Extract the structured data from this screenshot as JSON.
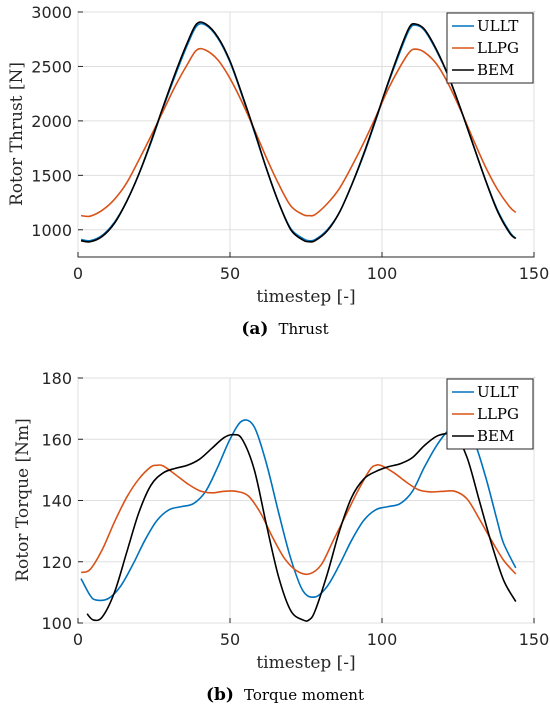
{
  "chart_data": [
    {
      "type": "line",
      "caption_letter": "(a)",
      "caption_text": "Thrust",
      "xlabel": "timestep [-]",
      "ylabel": "Rotor Thrust [N]",
      "xlim": [
        0,
        150
      ],
      "ylim": [
        750,
        3000
      ],
      "xticks": [
        0,
        50,
        100,
        150
      ],
      "yticks": [
        1000,
        1500,
        2000,
        2500,
        3000
      ],
      "grid": true,
      "legend_position": "top-right",
      "series": [
        {
          "name": "ULLT",
          "color": "#0072BD",
          "x": [
            1,
            4,
            8,
            12,
            16,
            20,
            24,
            28,
            32,
            36,
            39,
            42,
            46,
            50,
            54,
            58,
            62,
            66,
            70,
            74,
            76,
            78,
            82,
            86,
            90,
            94,
            98,
            102,
            106,
            109,
            111,
            114,
            118,
            122,
            126,
            130,
            134,
            138,
            142,
            144
          ],
          "y": [
            910,
            900,
            950,
            1070,
            1260,
            1510,
            1800,
            2120,
            2420,
            2700,
            2870,
            2880,
            2760,
            2540,
            2230,
            1900,
            1560,
            1250,
            1010,
            920,
            900,
            910,
            1000,
            1160,
            1410,
            1690,
            2010,
            2340,
            2640,
            2840,
            2880,
            2830,
            2640,
            2400,
            2100,
            1780,
            1460,
            1180,
            980,
            920
          ]
        },
        {
          "name": "LLPG",
          "color": "#D95319",
          "x": [
            1,
            4,
            8,
            12,
            16,
            20,
            24,
            28,
            32,
            36,
            39,
            42,
            46,
            50,
            54,
            58,
            62,
            66,
            70,
            74,
            76,
            78,
            82,
            86,
            90,
            94,
            98,
            102,
            106,
            109,
            111,
            114,
            118,
            122,
            126,
            130,
            134,
            138,
            142,
            144
          ],
          "y": [
            1130,
            1125,
            1180,
            1280,
            1430,
            1640,
            1860,
            2090,
            2320,
            2520,
            2650,
            2650,
            2560,
            2390,
            2170,
            1920,
            1660,
            1420,
            1220,
            1140,
            1130,
            1140,
            1240,
            1380,
            1580,
            1800,
            2040,
            2290,
            2500,
            2630,
            2660,
            2630,
            2520,
            2330,
            2090,
            1830,
            1580,
            1370,
            1210,
            1160
          ]
        },
        {
          "name": "BEM",
          "color": "#000000",
          "x": [
            1,
            4,
            8,
            12,
            16,
            20,
            24,
            28,
            32,
            36,
            39,
            42,
            46,
            50,
            54,
            58,
            62,
            66,
            70,
            74,
            76,
            78,
            82,
            86,
            90,
            94,
            98,
            102,
            106,
            109,
            111,
            114,
            118,
            122,
            126,
            130,
            134,
            138,
            142,
            144
          ],
          "y": [
            900,
            890,
            940,
            1060,
            1260,
            1510,
            1810,
            2130,
            2440,
            2720,
            2890,
            2890,
            2770,
            2550,
            2240,
            1910,
            1560,
            1250,
            1000,
            905,
            890,
            900,
            990,
            1160,
            1410,
            1700,
            2020,
            2350,
            2660,
            2860,
            2890,
            2840,
            2650,
            2400,
            2100,
            1780,
            1460,
            1170,
            970,
            920
          ]
        }
      ]
    },
    {
      "type": "line",
      "caption_letter": "(b)",
      "caption_text": "Torque moment",
      "xlabel": "timestep [-]",
      "ylabel": "Rotor Torque [Nm]",
      "xlim": [
        0,
        150
      ],
      "ylim": [
        100,
        180
      ],
      "xticks": [
        0,
        50,
        100,
        150
      ],
      "yticks": [
        100,
        120,
        140,
        160,
        180
      ],
      "grid": true,
      "legend_position": "top-right",
      "series": [
        {
          "name": "ULLT",
          "color": "#0072BD",
          "x": [
            1,
            4,
            6,
            10,
            14,
            18,
            22,
            26,
            30,
            34,
            38,
            42,
            46,
            50,
            54,
            58,
            62,
            66,
            70,
            74,
            78,
            82,
            86,
            90,
            94,
            98,
            102,
            106,
            110,
            114,
            118,
            122,
            126,
            130,
            134,
            138,
            140,
            144
          ],
          "y": [
            114.5,
            109,
            107.5,
            108,
            112,
            119,
            127,
            133.5,
            137,
            138,
            139,
            143,
            151,
            160,
            166,
            164,
            152,
            136,
            121,
            110.5,
            108.5,
            112,
            119,
            127,
            133.5,
            137,
            138,
            139,
            143,
            151,
            158,
            163,
            164,
            160,
            148,
            133,
            126,
            118
          ]
        },
        {
          "name": "LLPG",
          "color": "#D95319",
          "x": [
            1,
            4,
            8,
            12,
            16,
            20,
            24,
            26,
            28,
            32,
            36,
            40,
            44,
            48,
            52,
            56,
            60,
            64,
            68,
            72,
            76,
            80,
            84,
            88,
            92,
            96,
            98,
            100,
            104,
            108,
            112,
            116,
            120,
            124,
            128,
            132,
            136,
            140,
            144
          ],
          "y": [
            116.5,
            117.5,
            124,
            133,
            141,
            147,
            151,
            151.5,
            151.3,
            148.5,
            145.5,
            143.2,
            142.5,
            143,
            143,
            141.5,
            136,
            128,
            121,
            117,
            116,
            119,
            127,
            135,
            143,
            150,
            151.5,
            151.3,
            149,
            146,
            143.5,
            142.8,
            143,
            143,
            140.5,
            134,
            127,
            120.5,
            116
          ]
        },
        {
          "name": "BEM",
          "color": "#000000",
          "x": [
            3,
            5,
            8,
            12,
            16,
            20,
            24,
            28,
            32,
            36,
            40,
            44,
            48,
            51,
            54,
            58,
            62,
            66,
            70,
            74,
            76,
            78,
            82,
            86,
            90,
            94,
            98,
            102,
            106,
            110,
            114,
            118,
            122,
            124,
            128,
            132,
            136,
            140,
            144
          ],
          "y": [
            103,
            101,
            102,
            110,
            123,
            136,
            145,
            149,
            150.5,
            151.5,
            153.5,
            157,
            160.5,
            161.5,
            160,
            150,
            132,
            115,
            104,
            101,
            101,
            104,
            116,
            130,
            141,
            147,
            149.5,
            151,
            152,
            154,
            158,
            161,
            162,
            161.8,
            154,
            140,
            126,
            114,
            107
          ]
        }
      ]
    }
  ]
}
